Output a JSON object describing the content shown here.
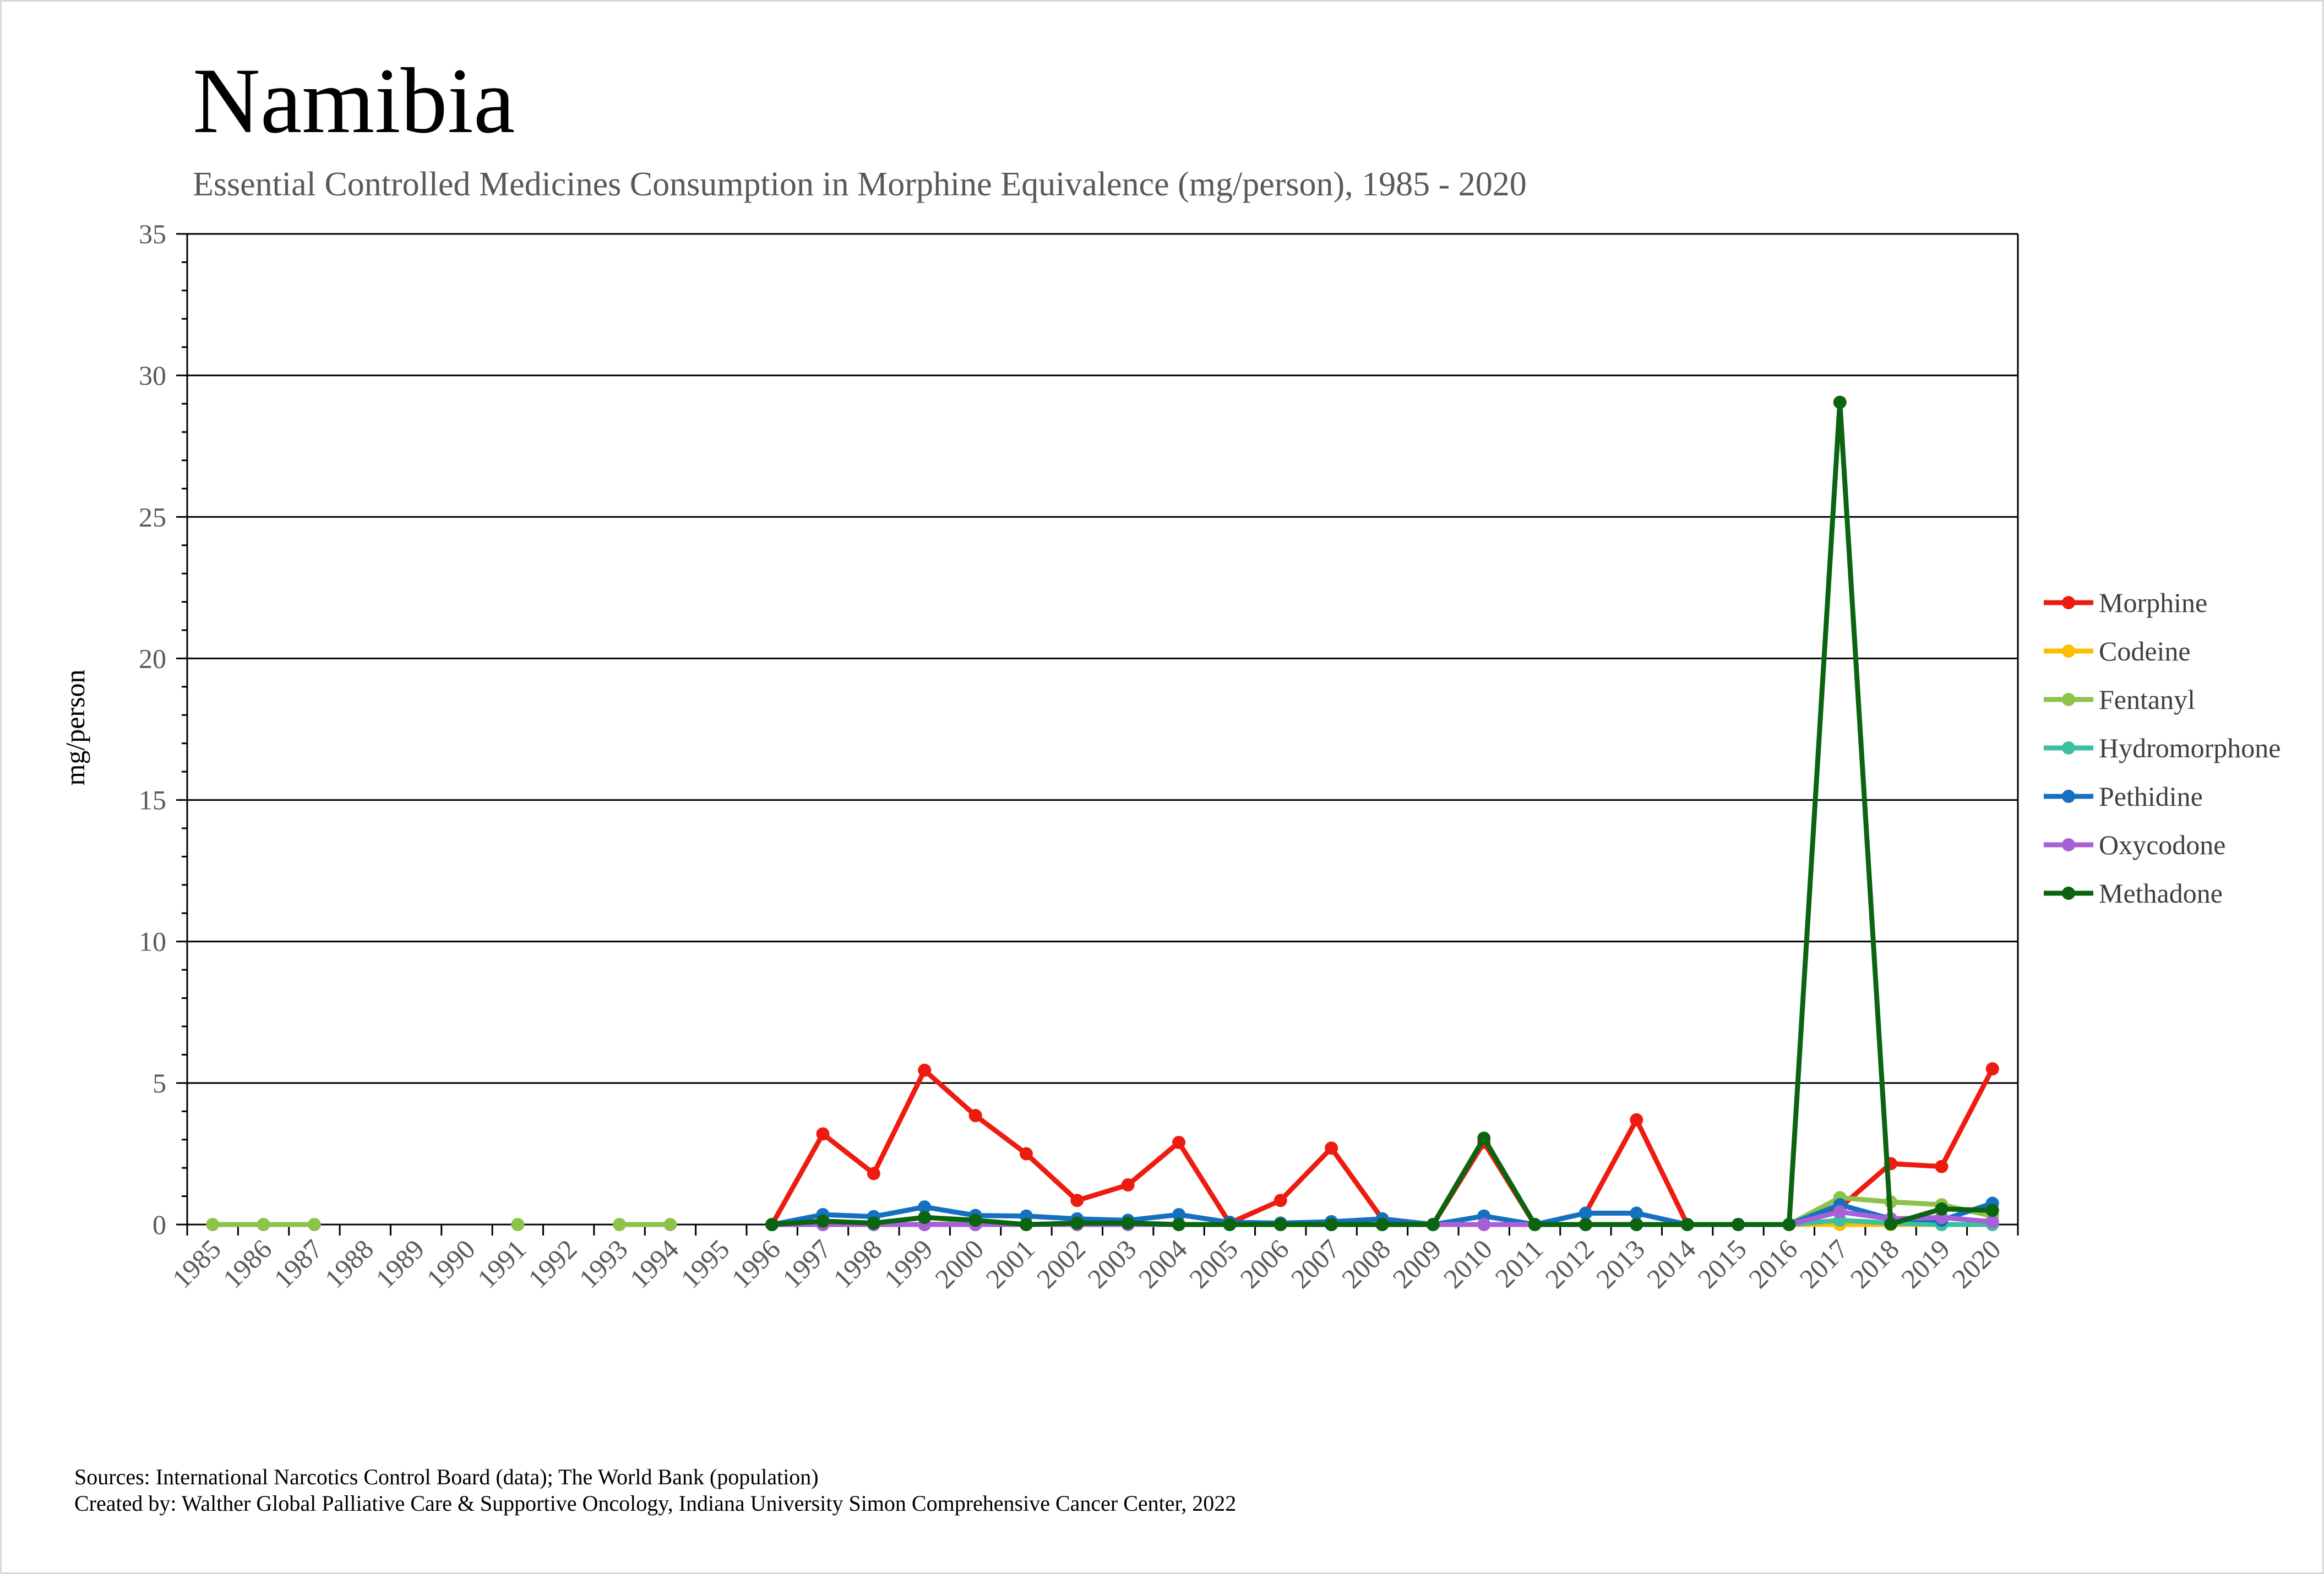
{
  "chart_data": {
    "type": "line",
    "title": "Namibia",
    "subtitle": "Essential Controlled Medicines Consumption in Morphine Equivalence (mg/person), 1985 - 2020",
    "xlabel": "",
    "ylabel": "mg/person",
    "ylim": [
      0,
      35
    ],
    "yticks": [
      "0",
      "5",
      "10",
      "15",
      "20",
      "25",
      "30",
      "35"
    ],
    "grid": true,
    "legend": "right",
    "categories": [
      "1985",
      "1986",
      "1987",
      "1988",
      "1989",
      "1990",
      "1991",
      "1992",
      "1993",
      "1994",
      "1995",
      "1996",
      "1997",
      "1998",
      "1999",
      "2000",
      "2001",
      "2002",
      "2003",
      "2004",
      "2005",
      "2006",
      "2007",
      "2008",
      "2009",
      "2010",
      "2011",
      "2012",
      "2013",
      "2014",
      "2015",
      "2016",
      "2017",
      "2018",
      "2019",
      "2020"
    ],
    "series": [
      {
        "name": "Morphine",
        "color": "#ee1c10",
        "values": [
          null,
          null,
          null,
          null,
          null,
          null,
          null,
          null,
          null,
          null,
          null,
          0,
          3.2,
          1.8,
          5.45,
          3.85,
          2.5,
          0.85,
          1.4,
          2.9,
          0.05,
          0.85,
          2.7,
          0.2,
          0,
          2.9,
          0,
          0.4,
          3.7,
          0,
          0,
          0,
          0.6,
          2.15,
          2.05,
          5.5
        ]
      },
      {
        "name": "Codeine",
        "color": "#fbbf00",
        "values": [
          null,
          null,
          null,
          null,
          null,
          null,
          null,
          null,
          null,
          null,
          null,
          0,
          0,
          0,
          0,
          0,
          0,
          0,
          0,
          0,
          0,
          0,
          0,
          0,
          0,
          0,
          0,
          0,
          0,
          0,
          0,
          0,
          0,
          0,
          0,
          0
        ]
      },
      {
        "name": "Fentanyl",
        "color": "#8dc34b",
        "values": [
          0,
          0,
          0,
          null,
          null,
          null,
          0,
          null,
          0,
          0,
          null,
          0,
          0.05,
          0,
          0,
          0.05,
          0,
          0,
          0,
          0,
          0,
          0,
          0,
          0,
          0,
          0,
          0,
          0,
          0,
          0,
          0,
          0,
          0.95,
          0.8,
          0.7,
          0.3
        ]
      },
      {
        "name": "Hydromorphone",
        "color": "#3cc0a0",
        "values": [
          null,
          null,
          null,
          null,
          null,
          null,
          null,
          null,
          null,
          null,
          null,
          0,
          0,
          0,
          0,
          0,
          0,
          0,
          0,
          0,
          0,
          0,
          0,
          0,
          0,
          0,
          0,
          0,
          0,
          0,
          0,
          0,
          0.15,
          0.05,
          0,
          0
        ]
      },
      {
        "name": "Pethidine",
        "color": "#1570c0",
        "values": [
          null,
          null,
          null,
          null,
          null,
          null,
          null,
          null,
          null,
          null,
          null,
          0,
          0.35,
          0.28,
          0.62,
          0.32,
          0.3,
          0.2,
          0.15,
          0.35,
          0.08,
          0.05,
          0.1,
          0.2,
          0,
          0.3,
          0,
          0.4,
          0.4,
          0,
          0,
          0,
          0.7,
          0.2,
          0.15,
          0.75
        ]
      },
      {
        "name": "Oxycodone",
        "color": "#a860d8",
        "values": [
          null,
          null,
          null,
          null,
          null,
          null,
          null,
          null,
          null,
          null,
          null,
          0,
          0,
          0,
          0,
          0,
          0,
          0,
          0,
          0,
          0,
          0,
          0,
          0,
          0,
          0,
          0,
          0,
          0,
          0,
          0,
          0,
          0.45,
          0.2,
          0.25,
          0.1
        ]
      },
      {
        "name": "Methadone",
        "color": "#0a6410",
        "values": [
          null,
          null,
          null,
          null,
          null,
          null,
          null,
          null,
          null,
          null,
          null,
          0,
          0.12,
          0.05,
          0.25,
          0.15,
          0,
          0.05,
          0.05,
          0,
          0,
          0,
          0,
          0,
          0,
          3.05,
          0,
          0,
          0,
          0,
          0,
          0,
          29.05,
          0.02,
          0.55,
          0.5
        ]
      }
    ]
  },
  "footer": {
    "sources": "Sources: International Narcotics Control Board (data); The World Bank (population)",
    "created_by": "Created by: Walther Global Palliative Care & Supportive Oncology, Indiana University Simon Comprehensive Cancer Center, 2022"
  }
}
